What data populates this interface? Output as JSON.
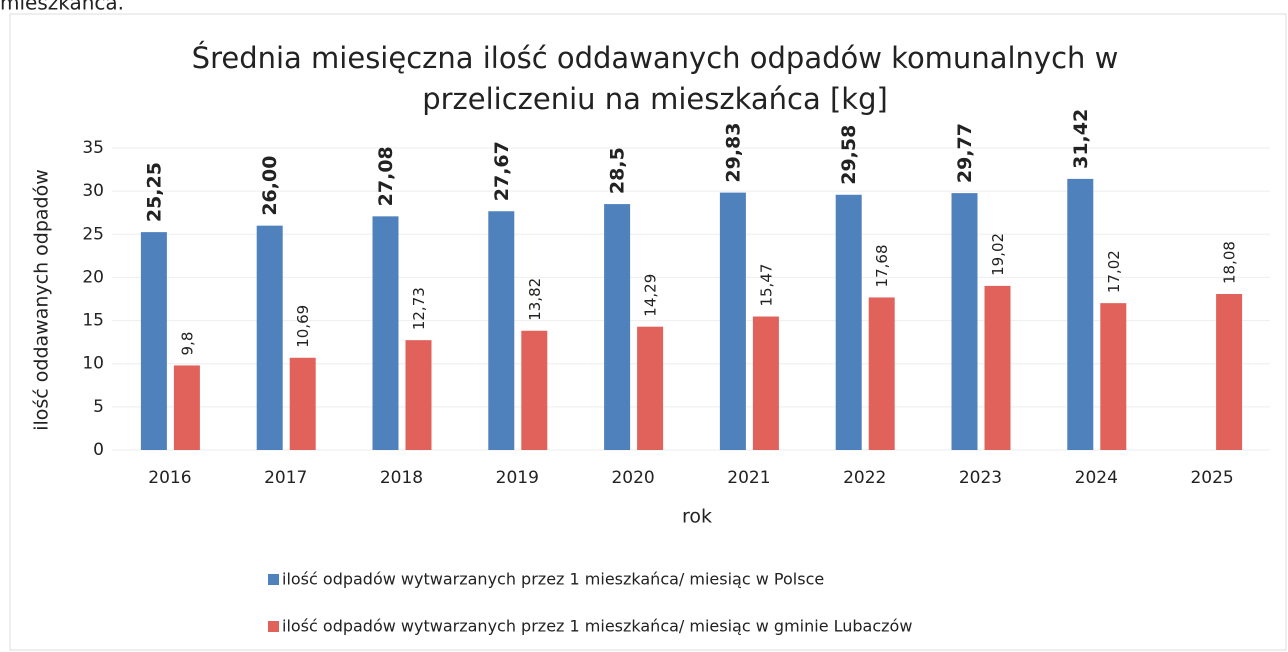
{
  "header_fragment": "mieszkańca.",
  "chart_data": {
    "type": "bar",
    "title": [
      "Średnia miesięczna ilość oddawanych odpadów komunalnych w",
      "przeliczeniu  na mieszkańca [kg]"
    ],
    "x_label": "rok",
    "y_label": "ilość oddawanych odpadów",
    "categories": [
      "2016",
      "2017",
      "2018",
      "2019",
      "2020",
      "2021",
      "2022",
      "2023",
      "2024",
      "2025"
    ],
    "series": [
      {
        "name": "ilość odpadów wytwarzanych przez 1  mieszkańca/ miesiąc w Polsce",
        "color": "#4f81bd",
        "values": [
          25.25,
          26,
          27.08,
          27.67,
          28.5,
          29.83,
          29.58,
          29.77,
          31.42,
          null
        ],
        "value_labels": [
          "25,25",
          "26,00",
          "27,08",
          "27,67",
          "28,5",
          "29,83",
          "29,58",
          "29,77",
          "31,42",
          null
        ]
      },
      {
        "name": "ilość odpadów wytwarzanych przez  1 mieszkańca/ miesiąc w gminie Lubaczów",
        "color": "#e0625a",
        "values": [
          9.8,
          10.69,
          12.73,
          13.82,
          14.29,
          15.47,
          17.68,
          19.02,
          17.02,
          18.08
        ],
        "value_labels": [
          "9,8",
          "10,69",
          "12,73",
          "13,82",
          "14,29",
          "15,47",
          "17,68",
          "19,02",
          "17,02",
          "18,08"
        ]
      }
    ],
    "ylim": [
      0,
      35
    ],
    "yticks": [
      0,
      5,
      10,
      15,
      20,
      25,
      30,
      35
    ],
    "grid": true,
    "legend": "bottom"
  }
}
